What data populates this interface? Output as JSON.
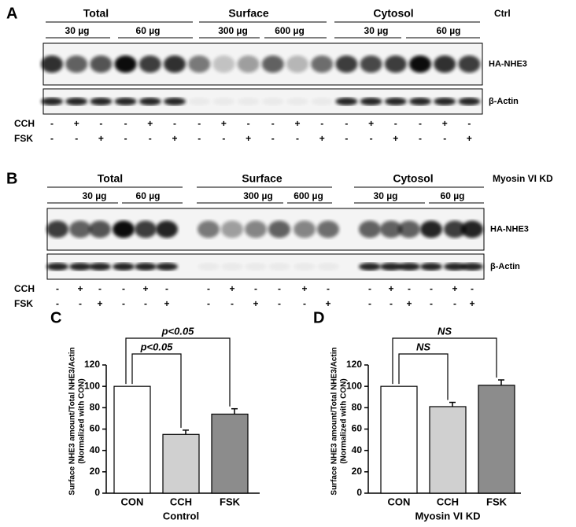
{
  "blots": [
    {
      "panel": "A",
      "condition": "Ctrl",
      "groups": [
        "Total",
        "Surface",
        "Cytosol"
      ],
      "amounts": [
        "30 µg",
        "60 µg",
        "300 µg",
        "600 µg",
        "30 µg",
        "60 µg"
      ],
      "bands": [
        "HA-NHE3",
        "β-Actin"
      ],
      "treatments": [
        {
          "name": "CCH",
          "signs": [
            "-",
            "+",
            "-",
            "-",
            "+",
            "-",
            "-",
            "+",
            "-",
            "-",
            "+",
            "-",
            "-",
            "+",
            "-",
            "-",
            "+",
            "-"
          ]
        },
        {
          "name": "FSK",
          "signs": [
            "-",
            "-",
            "+",
            "-",
            "-",
            "+",
            "-",
            "-",
            "+",
            "-",
            "-",
            "+",
            "-",
            "-",
            "+",
            "-",
            "-",
            "+"
          ]
        }
      ]
    },
    {
      "panel": "B",
      "condition": "Myosin VI KD",
      "groups": [
        "Total",
        "Surface",
        "Cytosol"
      ],
      "amounts": [
        "30 µg",
        "60 µg",
        "300 µg",
        "600 µg",
        "30 µg",
        "60 µg"
      ],
      "bands": [
        "HA-NHE3",
        "β-Actin"
      ],
      "treatments": [
        {
          "name": "CCH",
          "signs": [
            "-",
            "+",
            "-",
            "-",
            "+",
            "-",
            "-",
            "+",
            "-",
            "-",
            "+",
            "-",
            "-",
            "+",
            "-",
            "-",
            "+",
            "-"
          ]
        },
        {
          "name": "FSK",
          "signs": [
            "-",
            "-",
            "+",
            "-",
            "-",
            "+",
            "-",
            "-",
            "+",
            "-",
            "-",
            "+",
            "-",
            "-",
            "+",
            "-",
            "-",
            "+"
          ]
        }
      ]
    }
  ],
  "chart_data": [
    {
      "type": "bar",
      "panel": "C",
      "ylabel": [
        "Surface NHE3 amount/Total NHE3/Actin",
        "(Normalized with CON)"
      ],
      "xlabel": "Control",
      "categories": [
        "CON",
        "CCH",
        "FSK"
      ],
      "values": [
        100,
        55,
        74
      ],
      "errors": [
        0,
        4,
        5
      ],
      "colors": [
        "#ffffff",
        "#d0d0d0",
        "#8c8c8c"
      ],
      "ylim": [
        0,
        120
      ],
      "yticks": [
        0,
        20,
        40,
        60,
        80,
        100,
        120
      ],
      "annotations": [
        "p<0.05",
        "p<0.05"
      ]
    },
    {
      "type": "bar",
      "panel": "D",
      "ylabel": [
        "Surface NHE3 amount/Total NHE3/Actin",
        "(Normalized with CON)"
      ],
      "xlabel": "Myosin VI KD",
      "categories": [
        "CON",
        "CCH",
        "FSK"
      ],
      "values": [
        100,
        81,
        101
      ],
      "errors": [
        0,
        4,
        5
      ],
      "colors": [
        "#ffffff",
        "#d0d0d0",
        "#8c8c8c"
      ],
      "ylim": [
        0,
        120
      ],
      "yticks": [
        0,
        20,
        40,
        60,
        80,
        100,
        120
      ],
      "annotations": [
        "NS",
        "NS"
      ]
    }
  ]
}
